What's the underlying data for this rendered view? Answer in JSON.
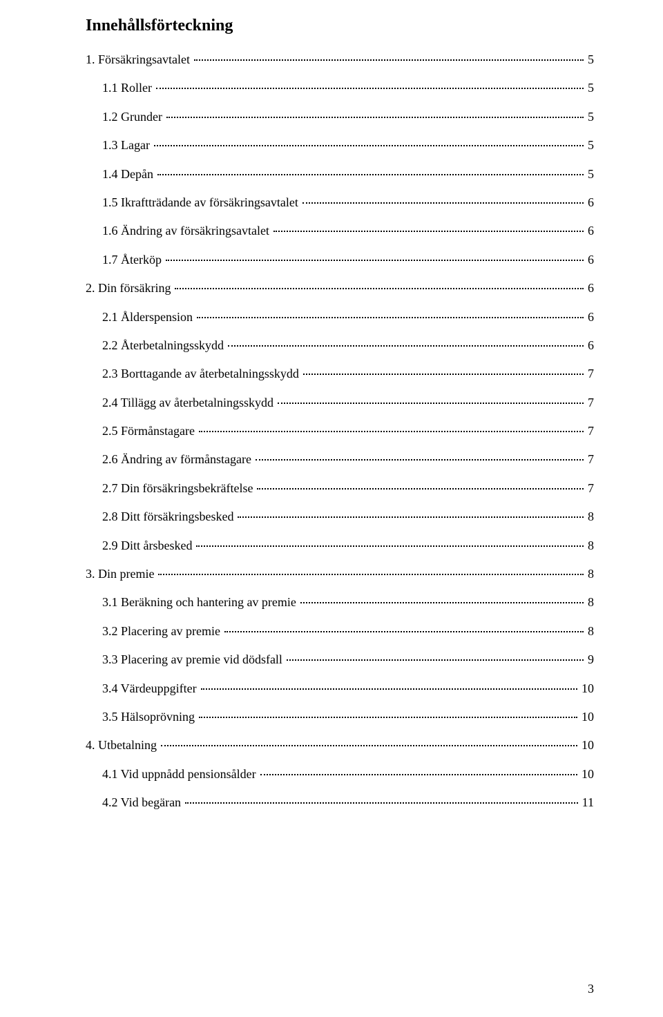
{
  "title": "Innehållsförteckning",
  "pageNumber": "3",
  "entries": [
    {
      "level": 0,
      "label": "1. Försäkringsavtalet",
      "page": "5"
    },
    {
      "level": 1,
      "label": "1.1 Roller",
      "page": "5"
    },
    {
      "level": 1,
      "label": "1.2 Grunder",
      "page": "5"
    },
    {
      "level": 1,
      "label": "1.3 Lagar",
      "page": "5"
    },
    {
      "level": 1,
      "label": "1.4 Depån",
      "page": "5"
    },
    {
      "level": 1,
      "label": "1.5 Ikraftträdande av försäkringsavtalet",
      "page": "6"
    },
    {
      "level": 1,
      "label": "1.6 Ändring av försäkringsavtalet",
      "page": "6"
    },
    {
      "level": 1,
      "label": "1.7 Återköp",
      "page": "6"
    },
    {
      "level": 0,
      "label": "2. Din försäkring",
      "page": "6"
    },
    {
      "level": 1,
      "label": "2.1 Ålderspension",
      "page": "6"
    },
    {
      "level": 1,
      "label": "2.2 Återbetalningsskydd",
      "page": "6"
    },
    {
      "level": 1,
      "label": "2.3 Borttagande av återbetalningsskydd",
      "page": "7"
    },
    {
      "level": 1,
      "label": "2.4 Tillägg av återbetalningsskydd",
      "page": "7"
    },
    {
      "level": 1,
      "label": "2.5 Förmånstagare",
      "page": "7"
    },
    {
      "level": 1,
      "label": "2.6 Ändring av förmånstagare",
      "page": "7"
    },
    {
      "level": 1,
      "label": "2.7 Din försäkringsbekräftelse",
      "page": "7"
    },
    {
      "level": 1,
      "label": "2.8 Ditt försäkringsbesked",
      "page": "8"
    },
    {
      "level": 1,
      "label": "2.9 Ditt årsbesked",
      "page": "8"
    },
    {
      "level": 0,
      "label": "3. Din premie",
      "page": "8"
    },
    {
      "level": 1,
      "label": "3.1 Beräkning och hantering av premie",
      "page": "8"
    },
    {
      "level": 1,
      "label": "3.2 Placering av premie",
      "page": "8"
    },
    {
      "level": 1,
      "label": "3.3 Placering av premie vid dödsfall",
      "page": "9"
    },
    {
      "level": 1,
      "label": "3.4 Värdeuppgifter",
      "page": "10"
    },
    {
      "level": 1,
      "label": "3.5 Hälsoprövning",
      "page": "10"
    },
    {
      "level": 0,
      "label": "4. Utbetalning",
      "page": "10"
    },
    {
      "level": 1,
      "label": "4.1 Vid uppnådd pensionsålder",
      "page": "10"
    },
    {
      "level": 1,
      "label": "4.2 Vid begäran",
      "page": "11"
    }
  ]
}
